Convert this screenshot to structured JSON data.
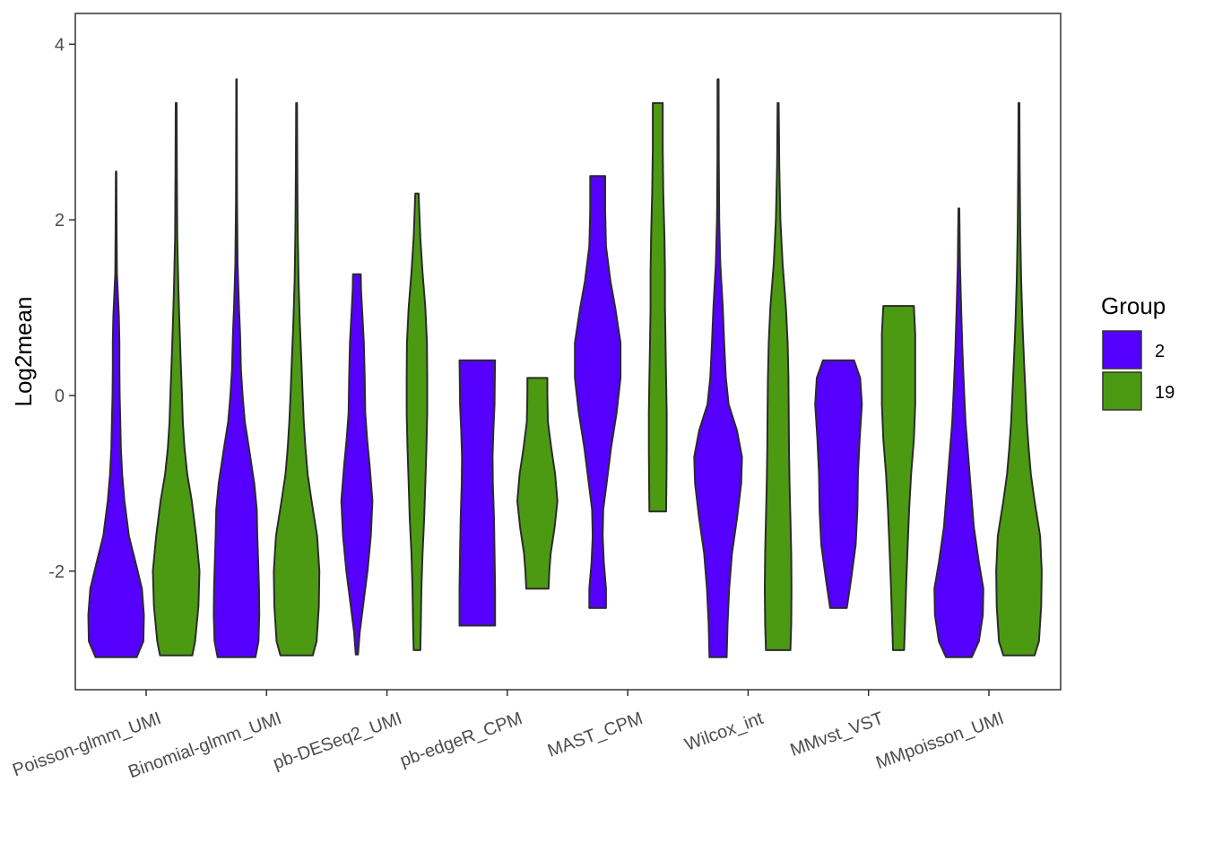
{
  "chart_data": {
    "type": "violin",
    "ylabel": "Log2mean",
    "xlabel": "",
    "ylim": [
      -3.35,
      4.35
    ],
    "yticks": [
      -2,
      0,
      2,
      4
    ],
    "ytick_labels": [
      "-2",
      "0",
      "2",
      "4"
    ],
    "grid": false,
    "legend": {
      "title": "Group",
      "position": "right",
      "entries": [
        {
          "label": "2",
          "color": "#5500FF"
        },
        {
          "label": "19",
          "color": "#4C9A12"
        }
      ]
    },
    "categories": [
      "Poisson-glmm_UMI",
      "Binomial-glmm_UMI",
      "pb-DESeq2_UMI",
      "pb-edgeR_CPM",
      "MAST_CPM",
      "Wilcox_int",
      "MMvst_VST",
      "MMpoisson_UMI"
    ],
    "series": [
      {
        "name": "2",
        "color": "#5500FF",
        "violins": [
          {
            "category": "Poisson-glmm_UMI",
            "profile": [
              [
                -2.98,
                0.74
              ],
              [
                -2.8,
                0.98
              ],
              [
                -2.5,
                1.0
              ],
              [
                -2.2,
                0.93
              ],
              [
                -1.9,
                0.7
              ],
              [
                -1.6,
                0.46
              ],
              [
                -1.2,
                0.3
              ],
              [
                -0.9,
                0.22
              ],
              [
                -0.6,
                0.17
              ],
              [
                -0.3,
                0.15
              ],
              [
                0.0,
                0.13
              ],
              [
                0.3,
                0.12
              ],
              [
                0.6,
                0.12
              ],
              [
                0.9,
                0.1
              ],
              [
                1.1,
                0.07
              ],
              [
                1.4,
                0.03
              ],
              [
                2.0,
                0.015
              ],
              [
                2.55,
                0.01
              ]
            ]
          },
          {
            "category": "Binomial-glmm_UMI",
            "profile": [
              [
                -2.98,
                0.68
              ],
              [
                -2.8,
                0.79
              ],
              [
                -2.5,
                0.82
              ],
              [
                -2.2,
                0.81
              ],
              [
                -1.9,
                0.78
              ],
              [
                -1.6,
                0.75
              ],
              [
                -1.3,
                0.73
              ],
              [
                -1.0,
                0.64
              ],
              [
                -0.6,
                0.45
              ],
              [
                -0.3,
                0.3
              ],
              [
                0.0,
                0.22
              ],
              [
                0.3,
                0.16
              ],
              [
                0.7,
                0.13
              ],
              [
                1.0,
                0.09
              ],
              [
                1.5,
                0.04
              ],
              [
                2.2,
                0.02
              ],
              [
                3.0,
                0.012
              ],
              [
                3.6,
                0.01
              ]
            ]
          },
          {
            "category": "pb-DESeq2_UMI",
            "profile": [
              [
                -2.95,
                0.04
              ],
              [
                -2.7,
                0.1
              ],
              [
                -2.4,
                0.22
              ],
              [
                -2.0,
                0.38
              ],
              [
                -1.6,
                0.5
              ],
              [
                -1.2,
                0.56
              ],
              [
                -0.8,
                0.46
              ],
              [
                -0.5,
                0.37
              ],
              [
                -0.2,
                0.3
              ],
              [
                0.2,
                0.28
              ],
              [
                0.6,
                0.25
              ],
              [
                0.9,
                0.2
              ],
              [
                1.2,
                0.15
              ],
              [
                1.38,
                0.14
              ]
            ]
          },
          {
            "category": "pb-edgeR_CPM",
            "profile": [
              [
                -2.62,
                0.64
              ],
              [
                -2.2,
                0.64
              ],
              [
                -1.8,
                0.62
              ],
              [
                -1.4,
                0.6
              ],
              [
                -1.0,
                0.56
              ],
              [
                -0.7,
                0.55
              ],
              [
                -0.4,
                0.58
              ],
              [
                -0.1,
                0.62
              ],
              [
                0.2,
                0.63
              ],
              [
                0.4,
                0.64
              ]
            ]
          },
          {
            "category": "MAST_CPM",
            "profile": [
              [
                -2.42,
                0.3
              ],
              [
                -2.2,
                0.3
              ],
              [
                -1.9,
                0.22
              ],
              [
                -1.6,
                0.18
              ],
              [
                -1.3,
                0.2
              ],
              [
                -1.0,
                0.32
              ],
              [
                -0.6,
                0.48
              ],
              [
                -0.2,
                0.68
              ],
              [
                0.2,
                0.82
              ],
              [
                0.6,
                0.82
              ],
              [
                1.0,
                0.63
              ],
              [
                1.3,
                0.46
              ],
              [
                1.7,
                0.3
              ],
              [
                2.1,
                0.27
              ],
              [
                2.5,
                0.27
              ]
            ]
          },
          {
            "category": "Wilcox_int",
            "profile": [
              [
                -2.98,
                0.31
              ],
              [
                -2.6,
                0.34
              ],
              [
                -2.2,
                0.4
              ],
              [
                -1.8,
                0.5
              ],
              [
                -1.4,
                0.68
              ],
              [
                -1.0,
                0.83
              ],
              [
                -0.7,
                0.86
              ],
              [
                -0.4,
                0.68
              ],
              [
                -0.1,
                0.38
              ],
              [
                0.2,
                0.28
              ],
              [
                0.6,
                0.22
              ],
              [
                1.0,
                0.17
              ],
              [
                1.5,
                0.08
              ],
              [
                2.0,
                0.04
              ],
              [
                2.7,
                0.025
              ],
              [
                3.6,
                0.02
              ]
            ]
          },
          {
            "category": "MMvst_VST",
            "profile": [
              [
                -2.42,
                0.3
              ],
              [
                -2.1,
                0.45
              ],
              [
                -1.7,
                0.62
              ],
              [
                -1.3,
                0.68
              ],
              [
                -0.9,
                0.7
              ],
              [
                -0.5,
                0.76
              ],
              [
                -0.1,
                0.84
              ],
              [
                0.2,
                0.78
              ],
              [
                0.4,
                0.56
              ]
            ]
          },
          {
            "category": "MMpoisson_UMI",
            "profile": [
              [
                -2.98,
                0.46
              ],
              [
                -2.8,
                0.72
              ],
              [
                -2.5,
                0.86
              ],
              [
                -2.2,
                0.88
              ],
              [
                -1.9,
                0.72
              ],
              [
                -1.5,
                0.54
              ],
              [
                -1.1,
                0.44
              ],
              [
                -0.7,
                0.34
              ],
              [
                -0.3,
                0.24
              ],
              [
                0.1,
                0.18
              ],
              [
                0.5,
                0.13
              ],
              [
                1.0,
                0.08
              ],
              [
                1.5,
                0.04
              ],
              [
                2.13,
                0.015
              ]
            ]
          }
        ]
      },
      {
        "name": "19",
        "color": "#4C9A12",
        "violins": [
          {
            "category": "Poisson-glmm_UMI",
            "profile": [
              [
                -2.96,
                0.58
              ],
              [
                -2.8,
                0.68
              ],
              [
                -2.4,
                0.8
              ],
              [
                -2.0,
                0.84
              ],
              [
                -1.6,
                0.72
              ],
              [
                -1.2,
                0.56
              ],
              [
                -0.9,
                0.4
              ],
              [
                -0.6,
                0.3
              ],
              [
                -0.3,
                0.24
              ],
              [
                0.0,
                0.21
              ],
              [
                0.4,
                0.16
              ],
              [
                0.8,
                0.12
              ],
              [
                1.2,
                0.08
              ],
              [
                1.8,
                0.04
              ],
              [
                2.5,
                0.025
              ],
              [
                3.33,
                0.015
              ]
            ]
          },
          {
            "category": "Binomial-glmm_UMI",
            "profile": [
              [
                -2.96,
                0.58
              ],
              [
                -2.8,
                0.72
              ],
              [
                -2.4,
                0.8
              ],
              [
                -2.0,
                0.82
              ],
              [
                -1.6,
                0.74
              ],
              [
                -1.2,
                0.54
              ],
              [
                -0.9,
                0.4
              ],
              [
                -0.6,
                0.32
              ],
              [
                -0.3,
                0.26
              ],
              [
                0.0,
                0.22
              ],
              [
                0.4,
                0.17
              ],
              [
                0.8,
                0.12
              ],
              [
                1.3,
                0.07
              ],
              [
                1.9,
                0.04
              ],
              [
                2.6,
                0.025
              ],
              [
                3.33,
                0.015
              ]
            ]
          },
          {
            "category": "pb-DESeq2_UMI",
            "profile": [
              [
                -2.9,
                0.12
              ],
              [
                -2.6,
                0.14
              ],
              [
                -2.2,
                0.16
              ],
              [
                -1.8,
                0.2
              ],
              [
                -1.4,
                0.26
              ],
              [
                -1.0,
                0.3
              ],
              [
                -0.6,
                0.34
              ],
              [
                -0.2,
                0.37
              ],
              [
                0.2,
                0.37
              ],
              [
                0.6,
                0.36
              ],
              [
                1.0,
                0.3
              ],
              [
                1.4,
                0.2
              ],
              [
                1.8,
                0.12
              ],
              [
                2.3,
                0.06
              ]
            ]
          },
          {
            "category": "pb-edgeR_CPM",
            "profile": [
              [
                -2.2,
                0.4
              ],
              [
                -2.0,
                0.43
              ],
              [
                -1.8,
                0.48
              ],
              [
                -1.5,
                0.62
              ],
              [
                -1.2,
                0.72
              ],
              [
                -0.9,
                0.64
              ],
              [
                -0.6,
                0.5
              ],
              [
                -0.3,
                0.38
              ],
              [
                0.0,
                0.36
              ],
              [
                0.2,
                0.36
              ]
            ]
          },
          {
            "category": "MAST_CPM",
            "profile": [
              [
                -1.32,
                0.3
              ],
              [
                -1.0,
                0.31
              ],
              [
                -0.6,
                0.32
              ],
              [
                -0.2,
                0.32
              ],
              [
                0.2,
                0.3
              ],
              [
                0.6,
                0.28
              ],
              [
                1.0,
                0.26
              ],
              [
                1.4,
                0.26
              ],
              [
                1.8,
                0.24
              ],
              [
                2.3,
                0.2
              ],
              [
                2.8,
                0.18
              ],
              [
                3.33,
                0.18
              ]
            ]
          },
          {
            "category": "Wilcox_int",
            "profile": [
              [
                -2.9,
                0.44
              ],
              [
                -2.6,
                0.47
              ],
              [
                -2.2,
                0.48
              ],
              [
                -1.8,
                0.47
              ],
              [
                -1.4,
                0.44
              ],
              [
                -1.0,
                0.41
              ],
              [
                -0.6,
                0.39
              ],
              [
                -0.2,
                0.38
              ],
              [
                0.2,
                0.37
              ],
              [
                0.6,
                0.34
              ],
              [
                1.0,
                0.28
              ],
              [
                1.5,
                0.16
              ],
              [
                2.0,
                0.08
              ],
              [
                2.6,
                0.04
              ],
              [
                3.33,
                0.02
              ]
            ]
          },
          {
            "category": "MMvst_VST",
            "profile": [
              [
                -2.9,
                0.2
              ],
              [
                -2.5,
                0.24
              ],
              [
                -2.1,
                0.28
              ],
              [
                -1.7,
                0.33
              ],
              [
                -1.3,
                0.38
              ],
              [
                -0.9,
                0.45
              ],
              [
                -0.5,
                0.55
              ],
              [
                -0.1,
                0.6
              ],
              [
                0.3,
                0.6
              ],
              [
                0.7,
                0.6
              ],
              [
                1.02,
                0.55
              ]
            ]
          },
          {
            "category": "MMpoisson_UMI",
            "profile": [
              [
                -2.96,
                0.56
              ],
              [
                -2.8,
                0.72
              ],
              [
                -2.4,
                0.8
              ],
              [
                -2.0,
                0.82
              ],
              [
                -1.6,
                0.76
              ],
              [
                -1.2,
                0.56
              ],
              [
                -0.9,
                0.43
              ],
              [
                -0.6,
                0.35
              ],
              [
                -0.3,
                0.28
              ],
              [
                0.0,
                0.24
              ],
              [
                0.4,
                0.18
              ],
              [
                0.8,
                0.13
              ],
              [
                1.3,
                0.08
              ],
              [
                1.9,
                0.045
              ],
              [
                2.6,
                0.025
              ],
              [
                3.33,
                0.015
              ]
            ]
          }
        ]
      }
    ]
  }
}
